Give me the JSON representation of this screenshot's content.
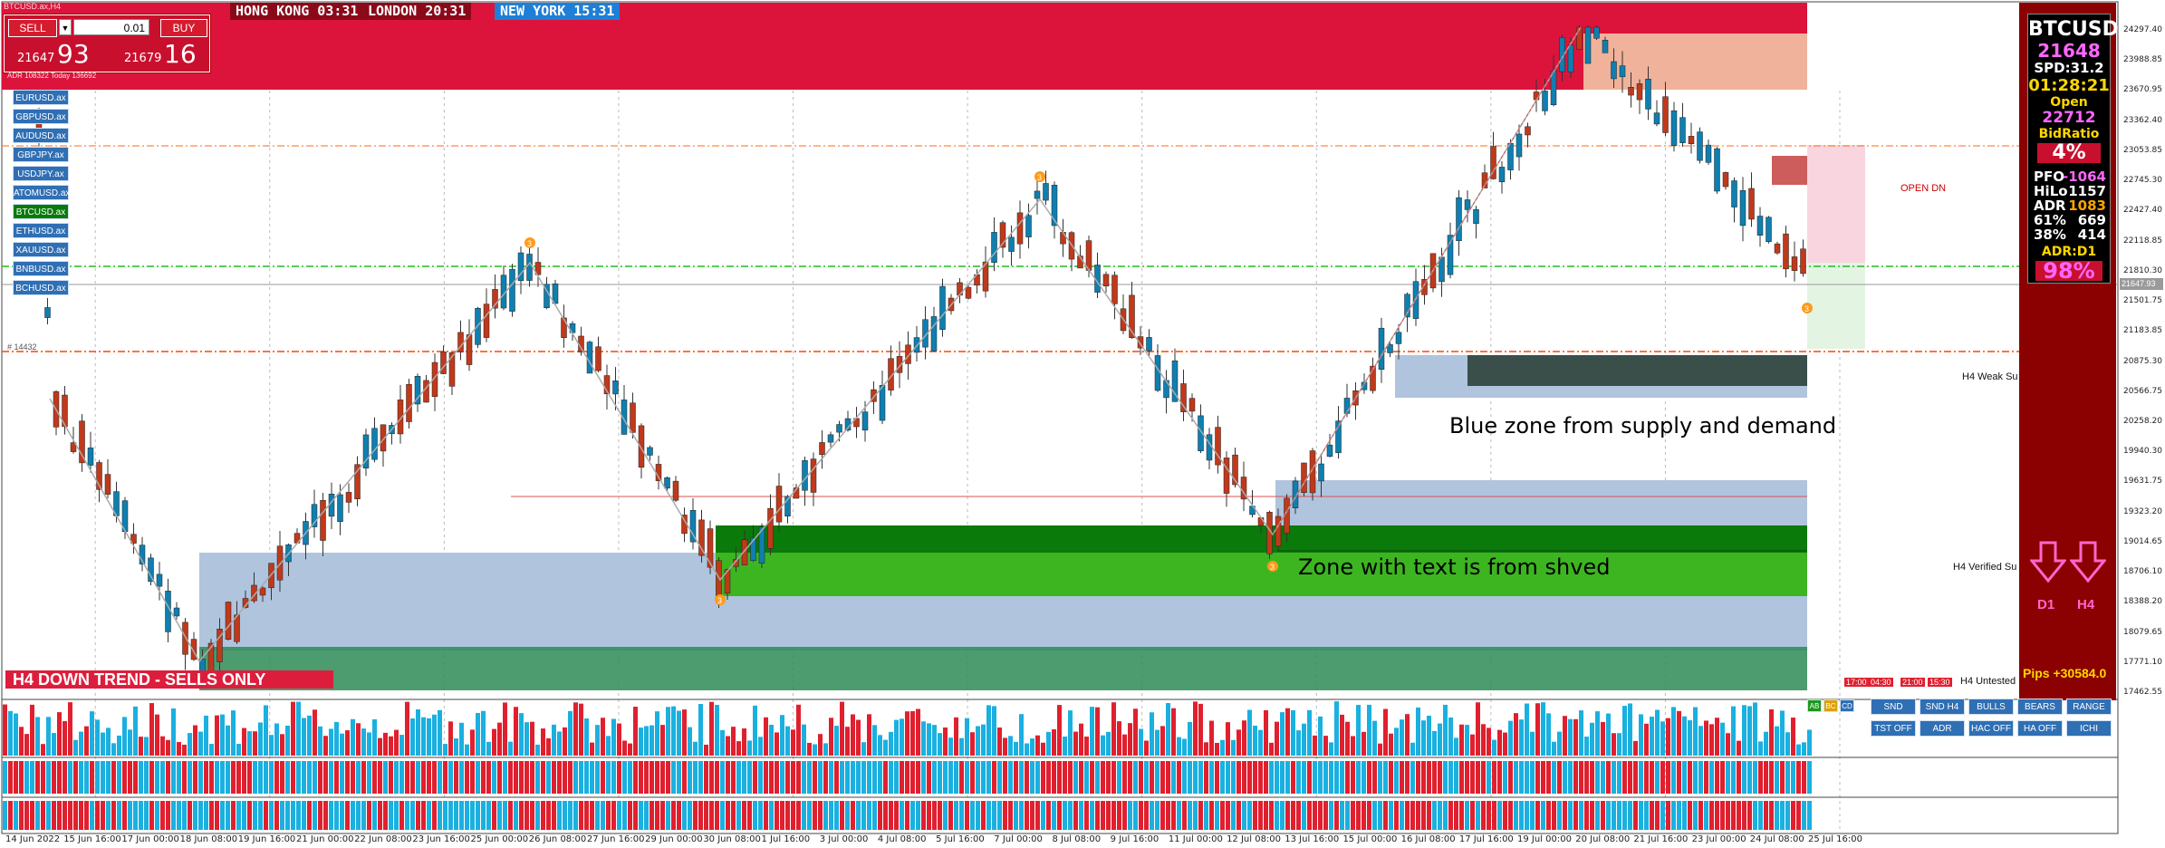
{
  "window": {
    "title": "BTCUSD.ax,H4"
  },
  "trade_panel": {
    "sell_label": "SELL",
    "buy_label": "BUY",
    "lot": "0.01",
    "bid_main": "21647",
    "bid_big": "93",
    "ask_main": "21679",
    "ask_big": "16",
    "adr_text": "ADR 108322  Today 136692"
  },
  "sessions": [
    {
      "label": "HONG KONG 03:31",
      "color": "#8b0a1a"
    },
    {
      "label": "LONDON  20:31",
      "color": "#8b0a1a"
    },
    {
      "label": "NEW YORK 15:31",
      "color": "#1f7fd6"
    }
  ],
  "symbols": [
    "EURUSD.ax",
    "GBPUSD.ax",
    "AUDUSD.ax",
    "GBPJPY.ax",
    "USDJPY.ax",
    "ATOMUSD.ax",
    "BTCUSD.ax",
    "ETHUSD.ax",
    "XAUUSD.ax",
    "BNBUSD.ax",
    "BCHUSD.ax"
  ],
  "active_symbol": "BTCUSD.ax",
  "right_panel": {
    "symbol": "BTCUSD.a",
    "price": "21648",
    "spread": "SPD:31.2",
    "timer": "01:28:21",
    "open_label": "Open",
    "open_value": "22712",
    "bid_ratio_label": "BidRatio",
    "bid_ratio_value": "4%",
    "rows": [
      {
        "label": "PFO",
        "value": "-1064"
      },
      {
        "label": "HiLo",
        "value": "1157"
      },
      {
        "label": "ADR",
        "value": "1083"
      },
      {
        "label": "61%",
        "value": "669"
      },
      {
        "label": "38%",
        "value": "414"
      }
    ],
    "adr_tf_label": "ADR:D1",
    "adr_tf_value": "98%",
    "arrow_d1": "D1",
    "arrow_h4": "H4",
    "pips": "Pips +30584.0"
  },
  "annotations": {
    "blue_zone": "Blue zone from supply and demand",
    "green_zone": "Zone with text is from shved",
    "trend": "H4  DOWN TREND - SELLS ONLY",
    "open_dn": "OPEN  DN",
    "h4_weak": "H4 Weak Su",
    "h4_verified": "H4 Verified Su",
    "h4_untested": "H4 Untested",
    "left_price_tag": "# 14432"
  },
  "timers": [
    "17:00",
    "04:30",
    "21:00",
    "15:30"
  ],
  "indicator_buttons": {
    "row1": [
      "SND",
      "SND H4",
      "BULLS",
      "BEARS",
      "RANGE"
    ],
    "row2": [
      "TST OFF",
      "ADR",
      "HAC OFF",
      "HA OFF",
      "ICHI"
    ],
    "tags": [
      "AB",
      "BC",
      "CD"
    ]
  },
  "y_axis": [
    "24297.40",
    "23988.85",
    "23670.95",
    "23362.40",
    "23053.85",
    "22745.30",
    "22427.40",
    "22118.85",
    "21810.30",
    "21501.75",
    "21183.85",
    "20875.30",
    "20566.75",
    "20258.20",
    "19940.30",
    "19631.75",
    "19323.20",
    "19014.65",
    "18706.10",
    "18388.20",
    "18079.65",
    "17771.10",
    "17462.55"
  ],
  "current_price_tag": "21647.93",
  "x_axis": [
    "14 Jun 2022",
    "15 Jun 16:00",
    "17 Jun 00:00",
    "18 Jun 08:00",
    "19 Jun 16:00",
    "21 Jun 00:00",
    "22 Jun 08:00",
    "23 Jun 16:00",
    "25 Jun 00:00",
    "26 Jun 08:00",
    "27 Jun 16:00",
    "29 Jun 00:00",
    "30 Jun 08:00",
    "1 Jul 16:00",
    "3 Jul 00:00",
    "4 Jul 08:00",
    "5 Jul 16:00",
    "7 Jul 00:00",
    "8 Jul 08:00",
    "9 Jul 16:00",
    "11 Jul 00:00",
    "12 Jul 08:00",
    "13 Jul 16:00",
    "15 Jul 00:00",
    "16 Jul 08:00",
    "17 Jul 16:00",
    "19 Jul 00:00",
    "20 Jul 08:00",
    "21 Jul 16:00",
    "23 Jul 00:00",
    "24 Jul 08:00",
    "25 Jul 16:00"
  ],
  "zigzag_points": [
    {
      "label": "X",
      "number": "3"
    },
    {
      "label": "B",
      "number": "3"
    },
    {
      "label": "A",
      "number": "3"
    },
    {
      "label": "C",
      "number": "3"
    },
    {
      "label": "D",
      "number": "3"
    }
  ],
  "colors": {
    "bull": "#0e7fb0",
    "bear": "#c0391b",
    "supply_top": "#dc143c",
    "supply_light": "#f0b8a0",
    "demand_blue": "#b0c4de",
    "demand_green": "#3cb521",
    "demand_dark": "#0a7a0a",
    "panel": "#8b0000"
  }
}
